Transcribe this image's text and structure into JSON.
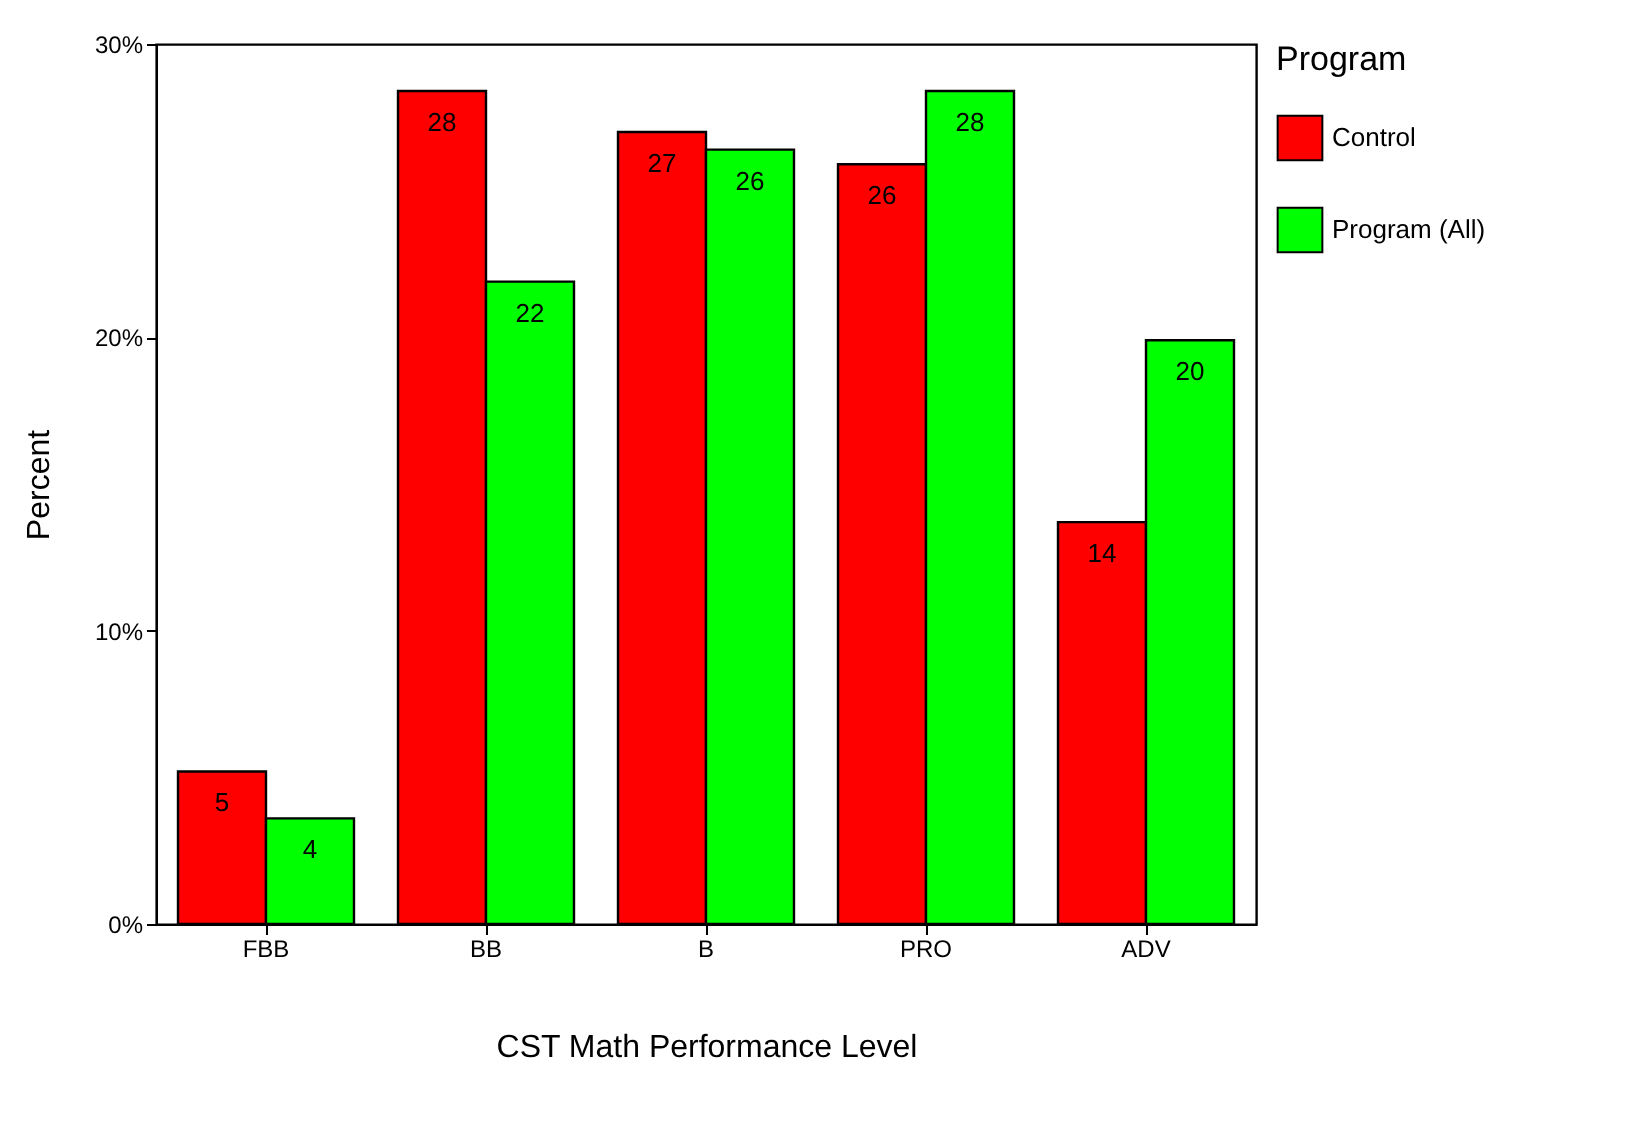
{
  "chart_data": {
    "type": "bar",
    "xlabel": "CST Math Performance Level",
    "ylabel": "Percent",
    "legend_title": "Program",
    "categories": [
      "FBB",
      "BB",
      "B",
      "PRO",
      "ADV"
    ],
    "series": [
      {
        "name": "Control",
        "color": "#ff0000",
        "values": [
          5.2,
          28.4,
          27.0,
          25.9,
          13.7
        ],
        "value_labels": [
          "5",
          "28",
          "27",
          "26",
          "14"
        ]
      },
      {
        "name": "Program (All)",
        "color": "#00ff00",
        "values": [
          3.6,
          21.9,
          26.4,
          28.4,
          19.9
        ],
        "value_labels": [
          "4",
          "22",
          "26",
          "28",
          "20"
        ]
      }
    ],
    "ylim": [
      0,
      30
    ],
    "yticks": [
      {
        "value": 0,
        "label": "0%"
      },
      {
        "value": 10,
        "label": "10%"
      },
      {
        "value": 20,
        "label": "20%"
      },
      {
        "value": 30,
        "label": "30%"
      }
    ],
    "grid": false,
    "legend": "right"
  }
}
